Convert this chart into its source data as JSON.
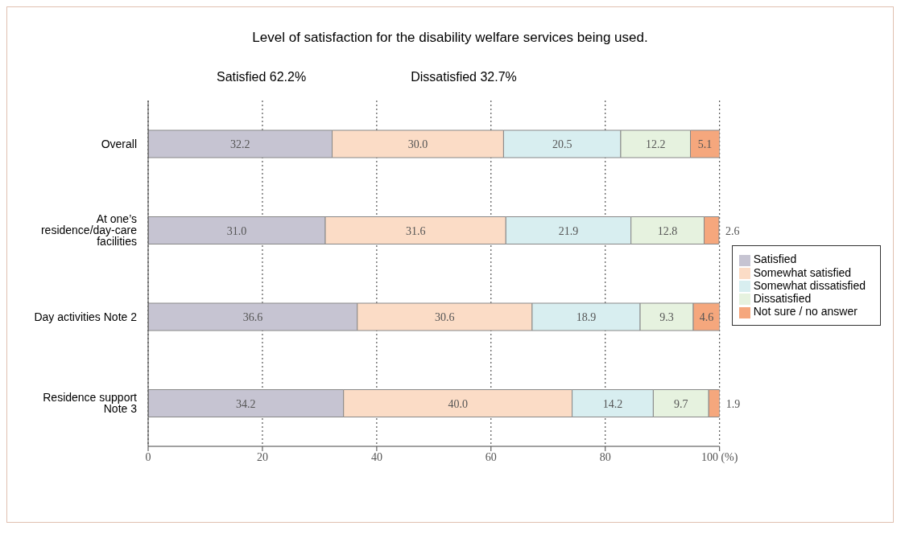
{
  "chart_data": {
    "type": "bar",
    "orientation": "horizontal",
    "stacked": true,
    "title": "Level of satisfaction for the disability welfare services being used.",
    "annotations": [
      "Satisfied 62.2%",
      "Dissatisfied 32.7%"
    ],
    "categories": [
      "Overall",
      "At one’s residence/day-care facilities",
      "Day activities Note 2",
      "Residence support Note 3"
    ],
    "series": [
      {
        "name": "Satisfied",
        "color": "#c6c4d2",
        "values": [
          32.2,
          31.0,
          36.6,
          34.2
        ],
        "value_labels": [
          "32.2",
          "31.0",
          "36.6",
          "34.2"
        ]
      },
      {
        "name": "Somewhat satisfied",
        "color": "#fbdcc6",
        "values": [
          30.0,
          31.6,
          30.6,
          40.0
        ],
        "value_labels": [
          "30.0",
          "31.6",
          "30.6",
          "40.0"
        ]
      },
      {
        "name": "Somewhat dissatisfied",
        "color": "#d8eef0",
        "values": [
          20.5,
          21.9,
          18.9,
          14.2
        ],
        "value_labels": [
          "20.5",
          "21.9",
          "18.9",
          "14.2"
        ]
      },
      {
        "name": "Dissatisfied",
        "color": "#e6f2df",
        "values": [
          12.2,
          12.8,
          9.3,
          9.7
        ],
        "value_labels": [
          "12.2",
          "12.8",
          "9.3",
          "9.7"
        ]
      },
      {
        "name": "Not sure / no answer",
        "color": "#f5a77d",
        "values": [
          5.1,
          2.6,
          4.6,
          1.9
        ],
        "value_labels": [
          "5.1",
          "2.6",
          "4.6",
          "1.9"
        ]
      }
    ],
    "xlim": [
      0,
      100
    ],
    "xticks": [
      0,
      20,
      40,
      60,
      80,
      {
        "value": 100,
        "label": "100 (%)"
      }
    ],
    "grid": "x",
    "legend": "right"
  }
}
